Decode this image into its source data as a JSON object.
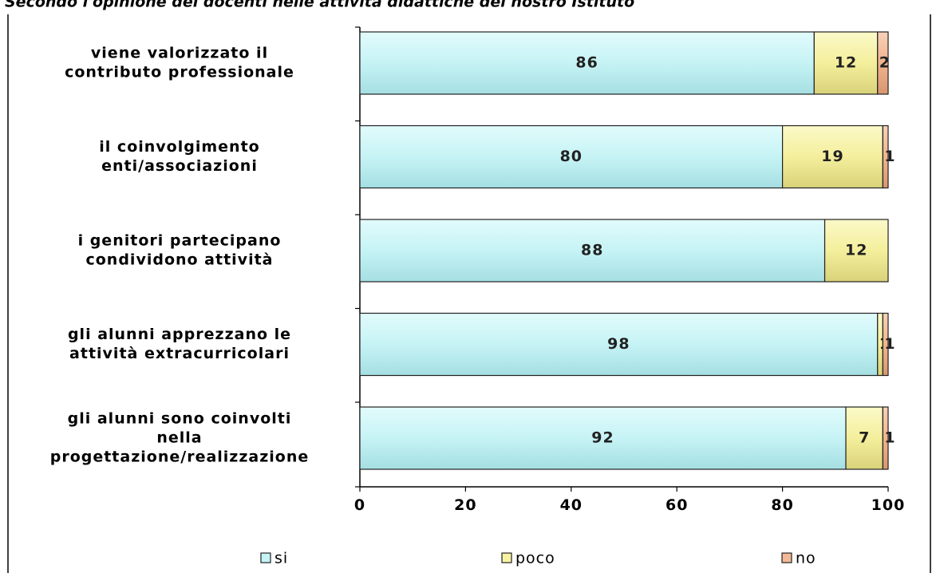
{
  "chart_data": {
    "type": "bar",
    "orientation": "horizontal",
    "stacked": true,
    "title": "Secondo l'opinione dei docenti nelle attività didattiche del nostro Istituto",
    "categories": [
      [
        "viene valorizzato il",
        "contributo professionale"
      ],
      [
        "il coinvolgimento",
        "enti/associazioni"
      ],
      [
        "i genitori partecipano",
        "condividono attività"
      ],
      [
        "gli alunni apprezzano le",
        "attività extracurricolari"
      ],
      [
        "gli alunni sono coinvolti",
        "nella",
        "progettazione/realizzazione"
      ]
    ],
    "series": [
      {
        "name": "si",
        "values": [
          86,
          80,
          88,
          98,
          92
        ],
        "color": "#c6f3f5"
      },
      {
        "name": "poco",
        "values": [
          12,
          19,
          12,
          1,
          7
        ],
        "color": "#f7f3a3"
      },
      {
        "name": "no",
        "values": [
          2,
          1,
          0,
          1,
          1
        ],
        "color": "#f3b896"
      }
    ],
    "xlim": [
      0,
      100
    ],
    "xticks": [
      0,
      20,
      40,
      60,
      80,
      100
    ],
    "grid": false,
    "legend_position": "bottom"
  }
}
